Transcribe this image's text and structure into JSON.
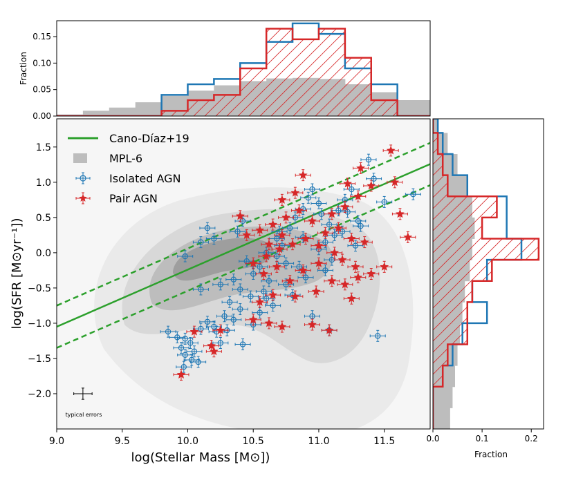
{
  "colors": {
    "fit": "#2ca02c",
    "isolated": "#1f77b4",
    "pair": "#d62728",
    "contours": [
      "#eaeaea",
      "#d8d8d8",
      "#bdbdbd",
      "#9e9e9e"
    ],
    "hist_gray": "#bdbdbd"
  },
  "chart_data": [
    {
      "id": "main",
      "type": "scatter",
      "xlabel": "log(Stellar Mass [M⊙])",
      "ylabel": "log(SFR [M⊙yr⁻¹])",
      "xlim": [
        9.0,
        11.85
      ],
      "ylim": [
        -2.5,
        1.9
      ],
      "xticks": [
        9.0,
        9.5,
        10.0,
        10.5,
        11.0,
        11.5
      ],
      "xtick_labels": [
        "9.0",
        "9.5",
        "10.0",
        "10.5",
        "11.0",
        "11.5"
      ],
      "yticks": [
        1.5,
        1.0,
        0.5,
        0.0,
        -0.5,
        -1.0,
        -1.5,
        -2.0
      ],
      "ytick_labels": [
        "1.5",
        "1.0",
        "0.5",
        "0.0",
        "−0.5",
        "−1.0",
        "−1.5",
        "−2.0"
      ],
      "legend": [
        {
          "label": "Cano-Díaz+19",
          "kind": "line"
        },
        {
          "label": "MPL-6",
          "kind": "patch"
        },
        {
          "label": "Isolated AGN",
          "kind": "circle"
        },
        {
          "label": "Pair AGN",
          "kind": "star"
        }
      ],
      "legend_position": "top-left",
      "typical_errors_label": "typical errors",
      "typical_errors": {
        "x": 9.2,
        "y": -2.0,
        "xerr": 0.07,
        "yerr": 0.08
      },
      "fit_line": {
        "name": "Cano-Díaz+19",
        "slope": 0.81,
        "intercept": -8.34,
        "offsets": [
          -0.3,
          0.0,
          0.3
        ]
      },
      "series": [
        {
          "name": "Isolated AGN",
          "marker": "circle",
          "points": [
            [
              9.85,
              -1.12
            ],
            [
              9.92,
              -1.2
            ],
            [
              9.98,
              -1.22
            ],
            [
              9.95,
              -1.35
            ],
            [
              10.02,
              -1.28
            ],
            [
              9.98,
              -1.45
            ],
            [
              10.03,
              -1.52
            ],
            [
              9.97,
              -1.62
            ],
            [
              10.08,
              -1.55
            ],
            [
              10.05,
              -1.4
            ],
            [
              10.1,
              -1.08
            ],
            [
              10.15,
              -0.98
            ],
            [
              10.2,
              -1.05
            ],
            [
              10.22,
              -1.12
            ],
            [
              10.25,
              -1.28
            ],
            [
              10.3,
              -1.1
            ],
            [
              10.28,
              -0.9
            ],
            [
              10.35,
              -0.95
            ],
            [
              10.4,
              -0.8
            ],
            [
              10.32,
              -0.7
            ],
            [
              10.42,
              -1.3
            ],
            [
              10.5,
              -1.02
            ],
            [
              10.55,
              -0.85
            ],
            [
              10.48,
              -0.62
            ],
            [
              10.58,
              -0.55
            ],
            [
              10.62,
              -0.4
            ],
            [
              10.5,
              -0.3
            ],
            [
              10.55,
              -0.2
            ],
            [
              10.45,
              -0.12
            ],
            [
              10.68,
              -0.05
            ],
            [
              10.72,
              0.1
            ],
            [
              10.7,
              0.3
            ],
            [
              10.78,
              0.35
            ],
            [
              10.82,
              0.5
            ],
            [
              10.88,
              0.62
            ],
            [
              10.92,
              0.78
            ],
            [
              10.95,
              0.9
            ],
            [
              11.0,
              0.7
            ],
            [
              11.02,
              0.55
            ],
            [
              11.08,
              0.4
            ],
            [
              11.12,
              0.25
            ],
            [
              11.05,
              0.15
            ],
            [
              11.15,
              0.6
            ],
            [
              11.2,
              0.75
            ],
            [
              11.25,
              0.9
            ],
            [
              11.22,
              0.58
            ],
            [
              11.3,
              0.45
            ],
            [
              11.18,
              0.3
            ],
            [
              11.28,
              0.1
            ],
            [
              11.0,
              0.05
            ],
            [
              11.1,
              -0.1
            ],
            [
              11.05,
              -0.25
            ],
            [
              10.9,
              -0.35
            ],
            [
              10.85,
              -0.2
            ],
            [
              10.75,
              -0.45
            ],
            [
              10.6,
              -0.65
            ],
            [
              10.65,
              -0.75
            ],
            [
              10.8,
              -0.6
            ],
            [
              10.95,
              -0.9
            ],
            [
              11.08,
              -1.1
            ],
            [
              10.38,
              0.3
            ],
            [
              10.42,
              0.45
            ],
            [
              10.2,
              0.2
            ],
            [
              10.15,
              0.35
            ],
            [
              10.1,
              0.15
            ],
            [
              9.98,
              -0.05
            ],
            [
              10.1,
              -0.52
            ],
            [
              10.25,
              -0.45
            ],
            [
              10.35,
              -0.38
            ],
            [
              10.4,
              -0.52
            ],
            [
              11.38,
              1.32
            ],
            [
              11.42,
              1.05
            ],
            [
              11.5,
              0.72
            ],
            [
              11.72,
              0.83
            ],
            [
              11.45,
              -1.18
            ],
            [
              10.6,
              0.0
            ],
            [
              10.68,
              0.2
            ],
            [
              10.75,
              -0.15
            ],
            [
              10.88,
              0.22
            ],
            [
              11.32,
              0.38
            ]
          ]
        },
        {
          "name": "Pair AGN",
          "marker": "star",
          "points": [
            [
              9.95,
              -1.73
            ],
            [
              10.05,
              -1.12
            ],
            [
              10.2,
              -1.4
            ],
            [
              10.18,
              -1.32
            ],
            [
              10.25,
              -1.1
            ],
            [
              10.5,
              -0.95
            ],
            [
              10.62,
              -1.0
            ],
            [
              10.72,
              -1.05
            ],
            [
              10.95,
              -1.02
            ],
            [
              11.08,
              -1.1
            ],
            [
              10.55,
              -0.7
            ],
            [
              10.65,
              -0.6
            ],
            [
              10.82,
              -0.62
            ],
            [
              10.98,
              -0.55
            ],
            [
              11.1,
              -0.4
            ],
            [
              11.2,
              -0.45
            ],
            [
              11.25,
              -0.65
            ],
            [
              11.3,
              -0.35
            ],
            [
              11.4,
              -0.3
            ],
            [
              11.5,
              -0.2
            ],
            [
              10.5,
              -0.15
            ],
            [
              10.6,
              -0.05
            ],
            [
              10.7,
              0.05
            ],
            [
              10.8,
              0.12
            ],
            [
              10.9,
              0.2
            ],
            [
              11.0,
              0.1
            ],
            [
              11.05,
              0.28
            ],
            [
              11.15,
              0.35
            ],
            [
              11.25,
              0.2
            ],
            [
              11.35,
              0.15
            ],
            [
              10.45,
              0.25
            ],
            [
              10.55,
              0.32
            ],
            [
              10.65,
              0.4
            ],
            [
              10.75,
              0.5
            ],
            [
              10.85,
              0.6
            ],
            [
              10.95,
              0.45
            ],
            [
              11.1,
              0.55
            ],
            [
              11.2,
              0.65
            ],
            [
              11.3,
              0.8
            ],
            [
              11.4,
              0.95
            ],
            [
              10.4,
              0.52
            ],
            [
              10.72,
              0.75
            ],
            [
              10.82,
              0.85
            ],
            [
              10.88,
              1.1
            ],
            [
              11.22,
              0.98
            ],
            [
              11.32,
              1.2
            ],
            [
              11.55,
              1.45
            ],
            [
              11.58,
              1.0
            ],
            [
              11.62,
              0.55
            ],
            [
              11.68,
              0.22
            ],
            [
              10.58,
              -0.3
            ],
            [
              10.68,
              -0.2
            ],
            [
              10.78,
              -0.4
            ],
            [
              10.88,
              -0.25
            ],
            [
              11.0,
              -0.15
            ],
            [
              11.12,
              0.0
            ],
            [
              11.18,
              -0.1
            ],
            [
              11.28,
              -0.2
            ],
            [
              10.62,
              0.12
            ],
            [
              10.72,
              0.25
            ]
          ]
        }
      ]
    },
    {
      "id": "top-hist",
      "type": "bar",
      "ylabel": "Fraction",
      "xlim": [
        9.0,
        11.85
      ],
      "ylim": [
        0.0,
        0.18
      ],
      "yticks": [
        0.0,
        0.05,
        0.1,
        0.15
      ],
      "ytick_labels": [
        "0.00",
        "0.05",
        "0.10",
        "0.15"
      ],
      "bin_edges": [
        9.0,
        9.2,
        9.4,
        9.6,
        9.8,
        10.0,
        10.2,
        10.4,
        10.6,
        10.8,
        11.0,
        11.2,
        11.4,
        11.6,
        11.85
      ],
      "series": [
        {
          "name": "MPL-6",
          "values": [
            0.003,
            0.01,
            0.016,
            0.026,
            0.038,
            0.048,
            0.058,
            0.066,
            0.071,
            0.072,
            0.07,
            0.06,
            0.045,
            0.03
          ]
        },
        {
          "name": "Isolated AGN",
          "values": [
            0.0,
            0.0,
            0.0,
            0.0,
            0.04,
            0.06,
            0.07,
            0.1,
            0.14,
            0.175,
            0.155,
            0.09,
            0.06,
            0.0
          ]
        },
        {
          "name": "Pair AGN",
          "values": [
            0.0,
            0.0,
            0.0,
            0.0,
            0.01,
            0.03,
            0.04,
            0.09,
            0.165,
            0.145,
            0.165,
            0.11,
            0.03,
            0.0
          ]
        }
      ]
    },
    {
      "id": "right-hist",
      "type": "bar",
      "orientation": "horizontal",
      "xlabel": "Fraction",
      "xlim": [
        0.0,
        0.225
      ],
      "ylim": [
        -2.5,
        1.9
      ],
      "xticks": [
        0.0,
        0.1,
        0.2
      ],
      "xtick_labels": [
        "0.0",
        "0.1",
        "0.2"
      ],
      "bin_edges": [
        -2.5,
        -2.2,
        -1.9,
        -1.6,
        -1.3,
        -1.0,
        -0.7,
        -0.4,
        -0.1,
        0.2,
        0.5,
        0.8,
        1.1,
        1.4,
        1.7,
        1.9
      ],
      "series": [
        {
          "name": "MPL-6",
          "values": [
            0.035,
            0.04,
            0.045,
            0.05,
            0.055,
            0.06,
            0.065,
            0.075,
            0.08,
            0.085,
            0.08,
            0.07,
            0.05,
            0.03,
            0.01
          ]
        },
        {
          "name": "Isolated AGN",
          "values": [
            0.0,
            0.0,
            0.02,
            0.04,
            0.06,
            0.11,
            0.08,
            0.11,
            0.18,
            0.15,
            0.15,
            0.07,
            0.04,
            0.02,
            0.01
          ]
        },
        {
          "name": "Pair AGN",
          "values": [
            0.0,
            0.0,
            0.02,
            0.03,
            0.07,
            0.07,
            0.08,
            0.12,
            0.215,
            0.1,
            0.13,
            0.03,
            0.02,
            0.01,
            0.0
          ]
        }
      ]
    }
  ]
}
